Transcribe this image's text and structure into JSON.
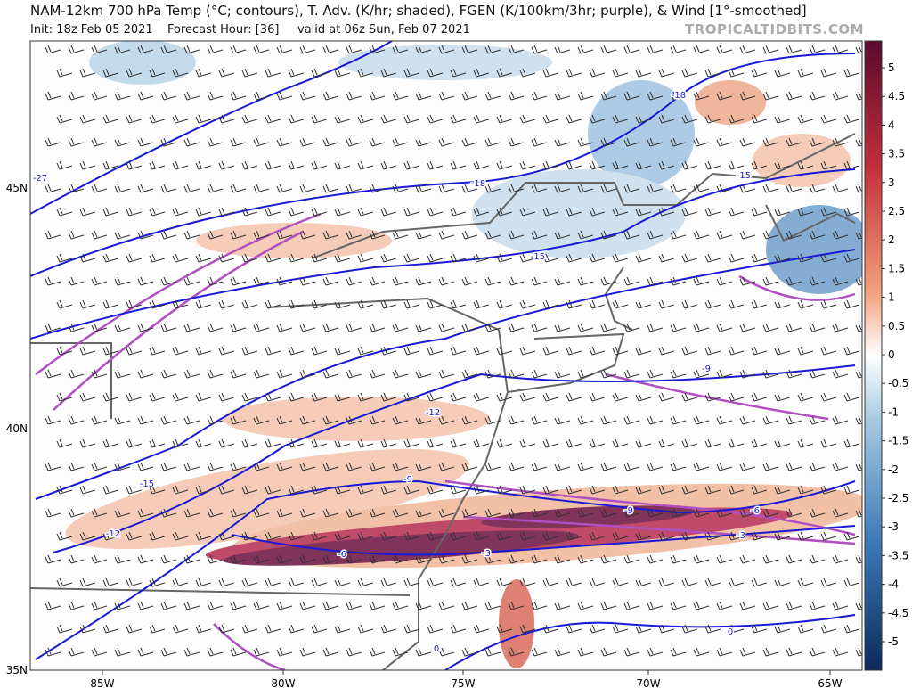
{
  "header": {
    "title": "NAM-12km 700 hPa Temp (°C; contours), T. Adv. (K/hr; shaded), FGEN (K/100km/3hr; purple), & Wind [1°-smoothed]",
    "init": "Init: 18z Feb 05 2021",
    "forecast_hour": "Forecast Hour: [36]",
    "valid": "valid at 06z Sun, Feb 07 2021",
    "watermark": "TROPICALTIDBITS.COM"
  },
  "map": {
    "lon_labels": [
      "85W",
      "80W",
      "75W",
      "70W",
      "65W"
    ],
    "lat_labels": [
      "45N",
      "40N",
      "35N"
    ],
    "contour_labels": [
      "-27",
      "-18",
      "-18",
      "-15",
      "-15",
      "-15",
      "-12",
      "-12",
      "-9",
      "-9",
      "-9",
      "-6",
      "-6",
      "-3",
      "-3",
      "0",
      "0"
    ]
  },
  "colorbar": {
    "labels": [
      "5",
      "4.5",
      "4",
      "3.5",
      "3",
      "2.5",
      "2",
      "1.5",
      "1",
      "0.5",
      "0",
      "-0.5",
      "-1",
      "-1.5",
      "-2",
      "-2.5",
      "-3",
      "-3.5",
      "-4",
      "-4.5",
      "-5"
    ]
  }
}
